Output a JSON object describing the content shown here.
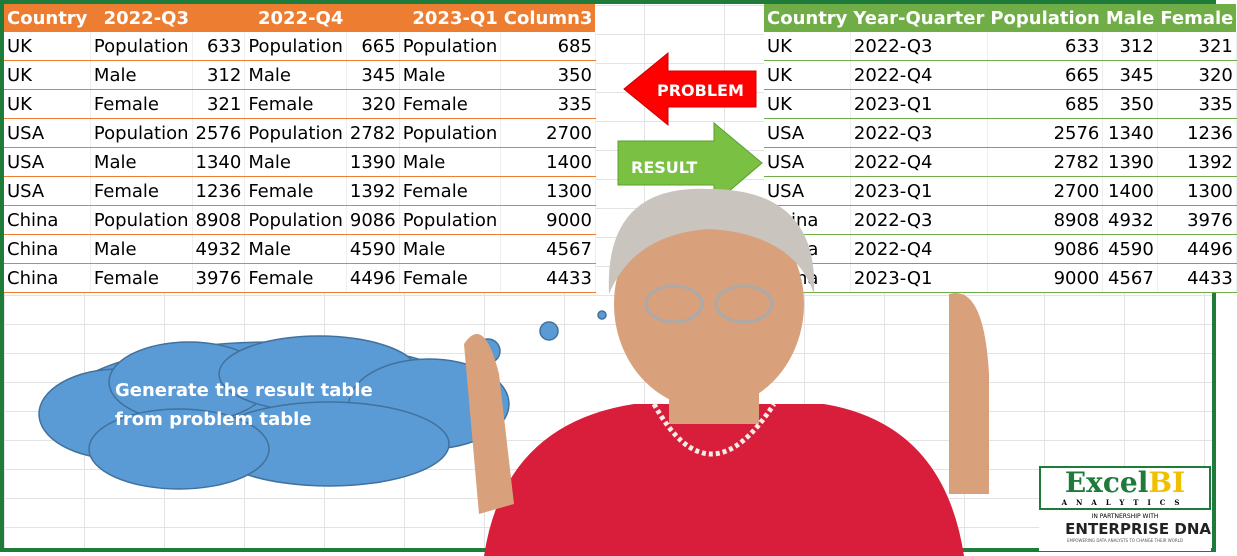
{
  "problem_table": {
    "headers": [
      "Country",
      "2022-Q3",
      "",
      "2022-Q4",
      "",
      "2023-Q1",
      "Column3"
    ],
    "rows": [
      [
        "UK",
        "Population",
        "633",
        "Population",
        "665",
        "Population",
        "685"
      ],
      [
        "UK",
        "Male",
        "312",
        "Male",
        "345",
        "Male",
        "350"
      ],
      [
        "UK",
        "Female",
        "321",
        "Female",
        "320",
        "Female",
        "335"
      ],
      [
        "USA",
        "Population",
        "2576",
        "Population",
        "2782",
        "Population",
        "2700"
      ],
      [
        "USA",
        "Male",
        "1340",
        "Male",
        "1390",
        "Male",
        "1400"
      ],
      [
        "USA",
        "Female",
        "1236",
        "Female",
        "1392",
        "Female",
        "1300"
      ],
      [
        "China",
        "Population",
        "8908",
        "Population",
        "9086",
        "Population",
        "9000"
      ],
      [
        "China",
        "Male",
        "4932",
        "Male",
        "4590",
        "Male",
        "4567"
      ],
      [
        "China",
        "Female",
        "3976",
        "Female",
        "4496",
        "Female",
        "4433"
      ]
    ],
    "color": "#ed7d31"
  },
  "result_table": {
    "headers": [
      "Country",
      "Year-Quarter",
      "Population",
      "Male",
      "Female"
    ],
    "rows": [
      [
        "UK",
        "2022-Q3",
        "633",
        "312",
        "321"
      ],
      [
        "UK",
        "2022-Q4",
        "665",
        "345",
        "320"
      ],
      [
        "UK",
        "2023-Q1",
        "685",
        "350",
        "335"
      ],
      [
        "USA",
        "2022-Q3",
        "2576",
        "1340",
        "1236"
      ],
      [
        "USA",
        "2022-Q4",
        "2782",
        "1390",
        "1392"
      ],
      [
        "USA",
        "2023-Q1",
        "2700",
        "1400",
        "1300"
      ],
      [
        "China",
        "2022-Q3",
        "8908",
        "4932",
        "3976"
      ],
      [
        "China",
        "2022-Q4",
        "9086",
        "4590",
        "4496"
      ],
      [
        "China",
        "2023-Q1",
        "9000",
        "4567",
        "4433"
      ]
    ],
    "color": "#70ad47"
  },
  "arrows": {
    "problem": "PROBLEM",
    "result": "RESULT"
  },
  "callout": {
    "text": "Generate the result table from problem table"
  },
  "logo": {
    "brand": "ExcelBI",
    "sub": "ANALYTICS",
    "partner_line": "IN PARTNERSHIP WITH",
    "partner": "ENTERPRISE DNA",
    "tagline": "EMPOWERING DATA ANALYSTS TO CHANGE THEIR WORLD"
  }
}
